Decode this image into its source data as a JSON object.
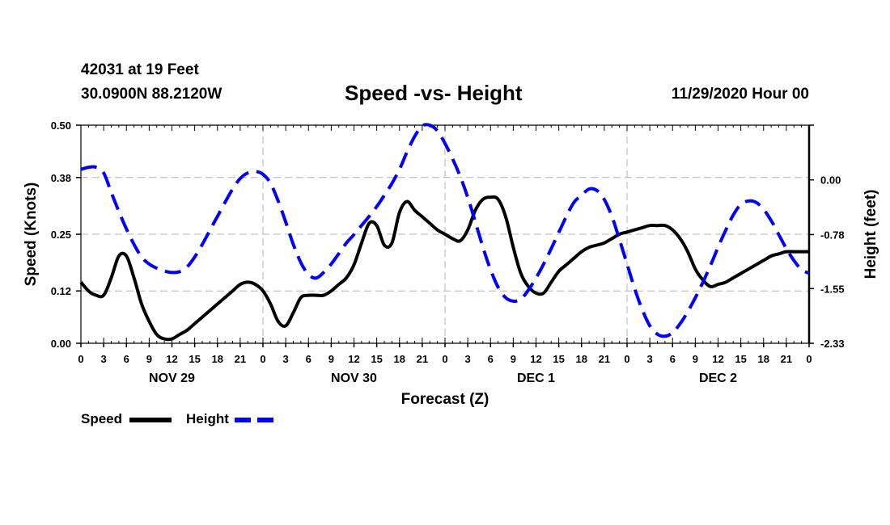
{
  "header": {
    "station": "42031 at 19 Feet",
    "coords": "30.0900N 88.2120W",
    "title": "Speed -vs- Height",
    "datetime": "11/29/2020 Hour 00"
  },
  "chart_data": {
    "type": "line",
    "title": "Speed -vs- Height",
    "xlabel": "Forecast (Z)",
    "ylabel": "Speed (Knots)",
    "y2label": "Height (feet)",
    "x_range": [
      0,
      96
    ],
    "ylim": [
      0.0,
      0.5
    ],
    "y2lim": [
      -2.33,
      0.78
    ],
    "y_ticks": [
      "0.00",
      "0.12",
      "0.25",
      "0.38",
      "0.50"
    ],
    "y2_ticks": [
      "-2.33",
      "-1.55",
      "-0.78",
      "0.00"
    ],
    "x_tick_labels": [
      "0",
      "3",
      "6",
      "9",
      "12",
      "15",
      "18",
      "21",
      "0",
      "3",
      "6",
      "9",
      "12",
      "15",
      "18",
      "21",
      "0",
      "3",
      "6",
      "9",
      "12",
      "15",
      "18",
      "21",
      "0",
      "3",
      "6",
      "9",
      "12",
      "15",
      "18",
      "21",
      "0"
    ],
    "day_labels": [
      {
        "hour": 12,
        "label": "NOV 29"
      },
      {
        "hour": 36,
        "label": "NOV 30"
      },
      {
        "hour": 60,
        "label": "DEC 1"
      },
      {
        "hour": 84,
        "label": "DEC 2"
      }
    ],
    "grid": true,
    "legend": "bottom-left",
    "series": [
      {
        "name": "Speed",
        "axis": "left",
        "color": "#000000",
        "dash": "solid",
        "x": [
          0,
          1,
          2,
          3,
          4,
          5,
          6,
          7,
          8,
          9,
          10,
          11,
          12,
          13,
          14,
          15,
          16,
          17,
          18,
          19,
          20,
          21,
          22,
          23,
          24,
          25,
          26,
          27,
          28,
          29,
          30,
          31,
          32,
          33,
          34,
          35,
          36,
          37,
          38,
          39,
          40,
          41,
          42,
          43,
          44,
          45,
          46,
          47,
          48,
          49,
          50,
          51,
          52,
          53,
          54,
          55,
          56,
          57,
          58,
          59,
          60,
          61,
          62,
          63,
          64,
          65,
          66,
          67,
          68,
          69,
          70,
          71,
          72,
          73,
          74,
          75,
          76,
          77,
          78,
          79,
          80,
          81,
          82,
          83,
          84,
          85,
          86,
          87,
          88,
          89,
          90,
          91,
          92,
          93,
          94,
          95,
          96
        ],
        "values": [
          0.14,
          0.12,
          0.11,
          0.11,
          0.15,
          0.2,
          0.2,
          0.15,
          0.09,
          0.05,
          0.02,
          0.01,
          0.01,
          0.02,
          0.03,
          0.045,
          0.06,
          0.075,
          0.09,
          0.105,
          0.12,
          0.135,
          0.14,
          0.135,
          0.12,
          0.09,
          0.05,
          0.04,
          0.07,
          0.105,
          0.11,
          0.11,
          0.11,
          0.12,
          0.135,
          0.15,
          0.18,
          0.23,
          0.275,
          0.27,
          0.225,
          0.23,
          0.3,
          0.325,
          0.305,
          0.29,
          0.275,
          0.26,
          0.25,
          0.24,
          0.235,
          0.26,
          0.305,
          0.33,
          0.335,
          0.33,
          0.29,
          0.22,
          0.16,
          0.13,
          0.115,
          0.115,
          0.14,
          0.165,
          0.18,
          0.195,
          0.21,
          0.22,
          0.225,
          0.23,
          0.24,
          0.25,
          0.255,
          0.26,
          0.265,
          0.27,
          0.27,
          0.27,
          0.26,
          0.24,
          0.21,
          0.17,
          0.145,
          0.13,
          0.135,
          0.14,
          0.15,
          0.16,
          0.17,
          0.18,
          0.19,
          0.2,
          0.205,
          0.21,
          0.21,
          0.21,
          0.21
        ]
      },
      {
        "name": "Height",
        "axis": "right",
        "color": "#0000ff",
        "dash": "dashed",
        "x": [
          0,
          1,
          2,
          3,
          4,
          5,
          6,
          7,
          8,
          9,
          10,
          11,
          12,
          13,
          14,
          15,
          16,
          17,
          18,
          19,
          20,
          21,
          22,
          23,
          24,
          25,
          26,
          27,
          28,
          29,
          30,
          31,
          32,
          33,
          34,
          35,
          36,
          37,
          38,
          39,
          40,
          41,
          42,
          43,
          44,
          45,
          46,
          47,
          48,
          49,
          50,
          51,
          52,
          53,
          54,
          55,
          56,
          57,
          58,
          59,
          60,
          61,
          62,
          63,
          64,
          65,
          66,
          67,
          68,
          69,
          70,
          71,
          72,
          73,
          74,
          75,
          76,
          77,
          78,
          79,
          80,
          81,
          82,
          83,
          84,
          85,
          86,
          87,
          88,
          89,
          90,
          91,
          92,
          93,
          94,
          95,
          96
        ],
        "values": [
          0.15,
          0.18,
          0.18,
          0.1,
          -0.18,
          -0.45,
          -0.7,
          -0.92,
          -1.1,
          -1.2,
          -1.26,
          -1.3,
          -1.32,
          -1.31,
          -1.24,
          -1.1,
          -0.92,
          -0.72,
          -0.52,
          -0.32,
          -0.13,
          0.02,
          0.1,
          0.12,
          0.08,
          -0.05,
          -0.3,
          -0.6,
          -0.92,
          -1.18,
          -1.35,
          -1.4,
          -1.32,
          -1.2,
          -1.05,
          -0.9,
          -0.78,
          -0.65,
          -0.52,
          -0.38,
          -0.22,
          -0.05,
          0.15,
          0.4,
          0.62,
          0.77,
          0.78,
          0.7,
          0.52,
          0.3,
          0.05,
          -0.25,
          -0.6,
          -0.96,
          -1.28,
          -1.53,
          -1.68,
          -1.73,
          -1.7,
          -1.57,
          -1.4,
          -1.2,
          -0.98,
          -0.75,
          -0.52,
          -0.32,
          -0.22,
          -0.13,
          -0.15,
          -0.28,
          -0.52,
          -0.85,
          -1.2,
          -1.55,
          -1.85,
          -2.08,
          -2.2,
          -2.23,
          -2.18,
          -2.05,
          -1.88,
          -1.68,
          -1.46,
          -1.22,
          -0.96,
          -0.72,
          -0.5,
          -0.35,
          -0.3,
          -0.32,
          -0.42,
          -0.58,
          -0.78,
          -0.98,
          -1.15,
          -1.28,
          -1.33
        ]
      }
    ]
  },
  "legend": {
    "speed_label": "Speed",
    "height_label": "Height"
  }
}
